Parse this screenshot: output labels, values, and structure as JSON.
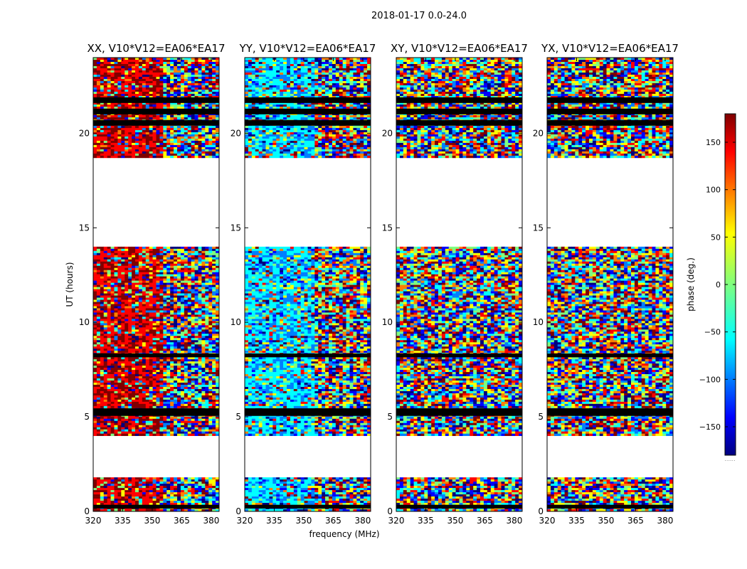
{
  "figure": {
    "suptitle": "2018-01-17 0.0-24.0",
    "xlabel": "frequency (MHz)",
    "ylabel": "UT (hours)",
    "colorbar_label": "phase (deg.)",
    "colorbar_footer": "......"
  },
  "chart_data": {
    "type": "heatmap",
    "colormap": "jet",
    "panels": [
      {
        "title": "XX, V10*V12=EA06*EA17"
      },
      {
        "title": "YY, V10*V12=EA06*EA17"
      },
      {
        "title": "XY, V10*V12=EA06*EA17"
      },
      {
        "title": "YX, V10*V12=EA06*EA17"
      }
    ],
    "x": {
      "label": "frequency (MHz)",
      "range": [
        320,
        384
      ],
      "ticks": [
        320,
        335,
        350,
        365,
        380
      ],
      "tick_labels": [
        "320",
        "335",
        "350",
        "365",
        "380"
      ]
    },
    "y": {
      "label": "UT (hours)",
      "range": [
        0,
        24
      ],
      "ticks": [
        0,
        5,
        10,
        15,
        20
      ],
      "tick_labels": [
        "0",
        "5",
        "10",
        "15",
        "20"
      ]
    },
    "z": {
      "label": "phase (deg.)",
      "range": [
        -180,
        180
      ],
      "ticks": [
        -150,
        -100,
        -50,
        0,
        50,
        100,
        150
      ],
      "tick_labels": [
        "−150",
        "−100",
        "−50",
        "0",
        "50",
        "100",
        "150"
      ]
    },
    "data_blocks_ut": [
      [
        0.0,
        1.8
      ],
      [
        4.0,
        14.0
      ],
      [
        18.7,
        24.0
      ]
    ],
    "flagged_bands_ut": [
      [
        0.15,
        0.35
      ],
      [
        5.05,
        5.45
      ],
      [
        8.15,
        8.35
      ],
      [
        20.4,
        20.7
      ],
      [
        21.0,
        21.3
      ],
      [
        21.6,
        21.9
      ]
    ]
  },
  "colors": {
    "jet": [
      "#00007f",
      "#0000ff",
      "#007fff",
      "#00ffff",
      "#7fff7f",
      "#ffff00",
      "#ff7f00",
      "#ff0000",
      "#7f0000"
    ]
  }
}
